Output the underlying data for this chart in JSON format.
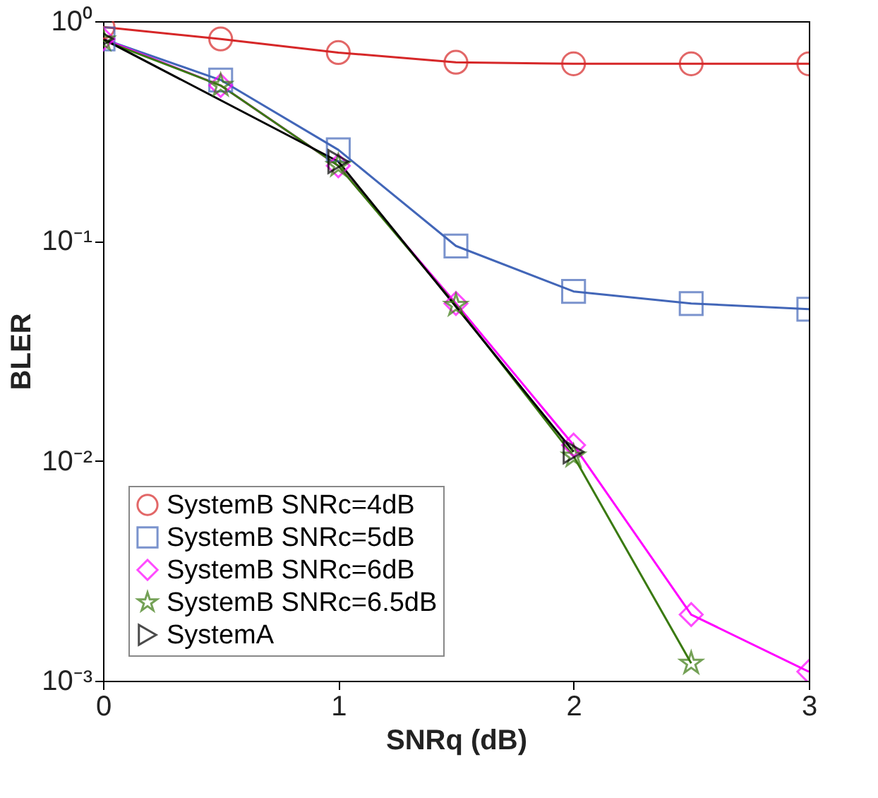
{
  "chart_data": {
    "type": "line",
    "xlabel": "SNRq (dB)",
    "ylabel": "BLER",
    "x": [
      0,
      0.5,
      1,
      1.5,
      2,
      2.5,
      3
    ],
    "series": [
      {
        "name": "SystemB SNRc=4dB",
        "color": "#d62728",
        "marker": "circle",
        "values": [
          0.94,
          0.83,
          0.72,
          0.65,
          0.64,
          0.64,
          0.64
        ]
      },
      {
        "name": "SystemB SNRc=5dB",
        "color": "#4266b8",
        "marker": "square",
        "values": [
          0.83,
          0.54,
          0.26,
          0.095,
          0.059,
          0.052,
          0.049
        ]
      },
      {
        "name": "SystemB SNRc=6dB",
        "color": "#ff00ff",
        "marker": "diamond",
        "values": [
          0.83,
          0.51,
          0.22,
          0.052,
          0.0118,
          0.002,
          0.0011
        ]
      },
      {
        "name": "SystemB SNRc=6.5dB",
        "color": "#3a7a10",
        "marker": "star",
        "values": [
          0.82,
          0.51,
          0.22,
          0.051,
          0.0105,
          0.0012,
          null
        ]
      },
      {
        "name": "SystemA",
        "color": "#000000",
        "marker": "triangle",
        "x": [
          0,
          1,
          2
        ],
        "values": [
          0.83,
          0.23,
          0.011
        ]
      }
    ],
    "log": "y",
    "xlim": [
      0,
      3
    ],
    "xticks": [
      0,
      1,
      2,
      3
    ],
    "ylim": [
      0.001,
      1
    ],
    "yticks": [
      {
        "value": 0.001,
        "label": "10⁻³"
      },
      {
        "value": 0.01,
        "label": "10⁻²"
      },
      {
        "value": 0.1,
        "label": "10⁻¹"
      },
      {
        "value": 1,
        "label": "10⁰"
      }
    ],
    "grid": false,
    "legend": "bottom left",
    "line_style": "solid"
  }
}
